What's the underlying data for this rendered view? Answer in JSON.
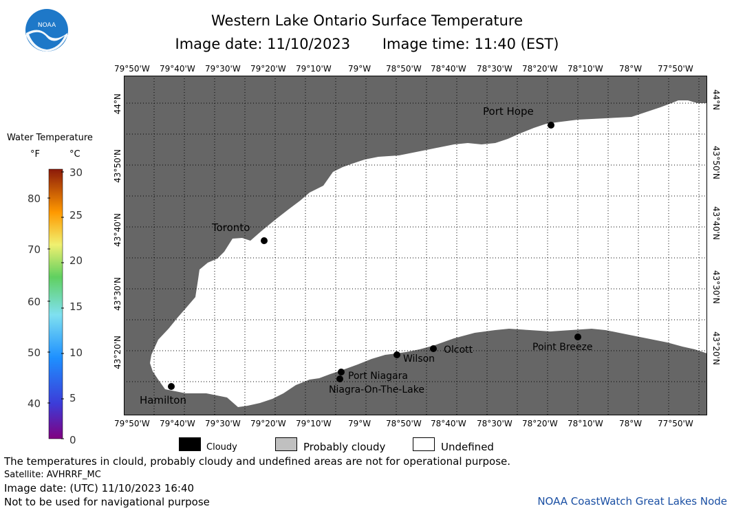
{
  "header": {
    "title": "Western Lake Ontario Surface Temperature",
    "image_date": "Image date: 11/10/2023",
    "image_time": "Image time: 11:40 (EST)"
  },
  "logo": {
    "text": "NOAA",
    "color": "#1e78c8"
  },
  "map": {
    "land_color": "#666666",
    "lake_color": "#ffffff",
    "lon_labels": [
      "79°50'W",
      "79°40'W",
      "79°30'W",
      "79°20'W",
      "79°10'W",
      "79°W",
      "78°50'W",
      "78°40'W",
      "78°30'W",
      "78°20'W",
      "78°10'W",
      "78°W",
      "77°50'W"
    ],
    "lat_labels": [
      "44°N",
      "43°50'N",
      "43°40'N",
      "43°30'N",
      "43°20'N"
    ],
    "places": {
      "port_hope": "Port Hope",
      "toronto": "Toronto",
      "hamilton": "Hamilton",
      "port_niagara": "Port Niagara",
      "niagara_on_the_lake": "Niagra-On-The-Lake",
      "wilson": "Wilson",
      "olcott": "Olcott",
      "point_breeze": "Point Breeze"
    }
  },
  "legend": {
    "title": "Water Temperature",
    "unit_f": "°F",
    "unit_c": "°C",
    "f_ticks": [
      "80",
      "70",
      "60",
      "50",
      "40"
    ],
    "c_ticks": [
      "30",
      "25",
      "20",
      "15",
      "10",
      "5",
      "0"
    ]
  },
  "key": {
    "cloudy": "Cloudy",
    "probably_cloudy": "Probably cloudy",
    "undefined": "Undefined",
    "cloudy_color": "#000000",
    "probably_cloudy_color": "#c0c0c0",
    "undefined_color": "#ffffff"
  },
  "footer": {
    "disclaimer": "The temperatures in clould, probably cloudy and undefined areas are not for operational purpose.",
    "satellite": "Satellite: AVHRRF_MC",
    "utc_date": "Image date: (UTC) 11/10/2023  16:40",
    "nav_warning": "Not to be used for navigational purpose",
    "credit": "NOAA CoastWatch Great Lakes Node"
  }
}
